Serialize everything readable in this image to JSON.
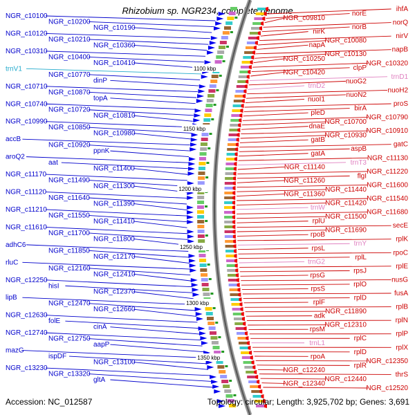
{
  "title": "Rhizobium sp. NGR234, complete genome",
  "footer": {
    "accession": "Accession: NC_012587",
    "summary": "Topology: circular; Length: 3,925,702 bp; Genes: 3,691"
  },
  "colors": {
    "left_label": "#0000cc",
    "right_label": "#cc0000",
    "trna_left": "#22aacc",
    "trna_right": "#e080c0",
    "forward_gene": "#0000ee",
    "reverse_gene": "#ee0000"
  },
  "scale_marks": [
    "1100 kbp",
    "1150 kbp",
    "1200 kbp",
    "1250 kbp",
    "1300 kbp",
    "1350 kbp"
  ],
  "left_labels": [
    {
      "text": "NGR_c10100",
      "type": "gene"
    },
    {
      "text": "NGR_c10200",
      "type": "gene"
    },
    {
      "text": "NGR_c10190",
      "type": "gene"
    },
    {
      "text": "NGR_c10120",
      "type": "gene"
    },
    {
      "text": "NGR_c10210",
      "type": "gene"
    },
    {
      "text": "NGR_c10360",
      "type": "gene"
    },
    {
      "text": "NGR_c10310",
      "type": "gene"
    },
    {
      "text": "NGR_c10400",
      "type": "gene"
    },
    {
      "text": "NGR_c10410",
      "type": "gene"
    },
    {
      "text": "trnV1",
      "type": "trna"
    },
    {
      "text": "NGR_c10770",
      "type": "gene"
    },
    {
      "text": "dinP",
      "type": "gene"
    },
    {
      "text": "NGR_c10710",
      "type": "gene"
    },
    {
      "text": "NGR_c10870",
      "type": "gene"
    },
    {
      "text": "topA",
      "type": "gene"
    },
    {
      "text": "NGR_c10740",
      "type": "gene"
    },
    {
      "text": "NGR_c10720",
      "type": "gene"
    },
    {
      "text": "NGR_c10810",
      "type": "gene"
    },
    {
      "text": "NGR_c10990",
      "type": "gene"
    },
    {
      "text": "NGR_c10850",
      "type": "gene"
    },
    {
      "text": "NGR_c10980",
      "type": "gene"
    },
    {
      "text": "accB",
      "type": "gene"
    },
    {
      "text": "NGR_c10920",
      "type": "gene"
    },
    {
      "text": "ppnK",
      "type": "gene"
    },
    {
      "text": "aroQ2",
      "type": "gene"
    },
    {
      "text": "aat",
      "type": "gene"
    },
    {
      "text": "NGR_c11400",
      "type": "gene"
    },
    {
      "text": "NGR_c11170",
      "type": "gene"
    },
    {
      "text": "NGR_c11490",
      "type": "gene"
    },
    {
      "text": "NGR_c11300",
      "type": "gene"
    },
    {
      "text": "NGR_c11120",
      "type": "gene"
    },
    {
      "text": "NGR_c11640",
      "type": "gene"
    },
    {
      "text": "NGR_c11390",
      "type": "gene"
    },
    {
      "text": "NGR_c11210",
      "type": "gene"
    },
    {
      "text": "NGR_c11550",
      "type": "gene"
    },
    {
      "text": "NGR_c11410",
      "type": "gene"
    },
    {
      "text": "NGR_c11610",
      "type": "gene"
    },
    {
      "text": "NGR_c11700",
      "type": "gene"
    },
    {
      "text": "NGR_c11800",
      "type": "gene"
    },
    {
      "text": "adhC6",
      "type": "gene"
    },
    {
      "text": "NGR_c11850",
      "type": "gene"
    },
    {
      "text": "NGR_c12170",
      "type": "gene"
    },
    {
      "text": "rluC",
      "type": "gene"
    },
    {
      "text": "NGR_c12160",
      "type": "gene"
    },
    {
      "text": "NGR_c12410",
      "type": "gene"
    },
    {
      "text": "NGR_c12250",
      "type": "gene"
    },
    {
      "text": "hisI",
      "type": "gene"
    },
    {
      "text": "NGR_c12370",
      "type": "gene"
    },
    {
      "text": "lipB",
      "type": "gene"
    },
    {
      "text": "NGR_c12470",
      "type": "gene"
    },
    {
      "text": "NGR_c12660",
      "type": "gene"
    },
    {
      "text": "NGR_c12630",
      "type": "gene"
    },
    {
      "text": "folE",
      "type": "gene"
    },
    {
      "text": "cinA",
      "type": "gene"
    },
    {
      "text": "NGR_c12740",
      "type": "gene"
    },
    {
      "text": "NGR_c12750",
      "type": "gene"
    },
    {
      "text": "aapP",
      "type": "gene"
    },
    {
      "text": "mazG",
      "type": "gene"
    },
    {
      "text": "ispDF",
      "type": "gene"
    },
    {
      "text": "NGR_c13100",
      "type": "gene"
    },
    {
      "text": "NGR_c13230",
      "type": "gene"
    },
    {
      "text": "NGR_c13320",
      "type": "gene"
    },
    {
      "text": "gltA",
      "type": "gene"
    }
  ],
  "right_labels": [
    {
      "text": "ihfA",
      "type": "gene"
    },
    {
      "text": "norE",
      "type": "gene"
    },
    {
      "text": "NGR_c09810",
      "type": "gene"
    },
    {
      "text": "norQ",
      "type": "gene"
    },
    {
      "text": "norB",
      "type": "gene"
    },
    {
      "text": "nirK",
      "type": "gene"
    },
    {
      "text": "nirV",
      "type": "gene"
    },
    {
      "text": "NGR_c10080",
      "type": "gene"
    },
    {
      "text": "napA",
      "type": "gene"
    },
    {
      "text": "napB",
      "type": "gene"
    },
    {
      "text": "NGR_c10130",
      "type": "gene"
    },
    {
      "text": "NGR_c10250",
      "type": "gene"
    },
    {
      "text": "NGR_c10320",
      "type": "gene"
    },
    {
      "text": "clpP",
      "type": "gene"
    },
    {
      "text": "NGR_c10420",
      "type": "gene"
    },
    {
      "text": "trnD1",
      "type": "trna"
    },
    {
      "text": "nuoG2",
      "type": "gene"
    },
    {
      "text": "trnD2",
      "type": "trna"
    },
    {
      "text": "nuoH2",
      "type": "gene"
    },
    {
      "text": "nuoN2",
      "type": "gene"
    },
    {
      "text": "nuoI1",
      "type": "gene"
    },
    {
      "text": "proS",
      "type": "gene"
    },
    {
      "text": "birA",
      "type": "gene"
    },
    {
      "text": "pleD",
      "type": "gene"
    },
    {
      "text": "NGR_c10790",
      "type": "gene"
    },
    {
      "text": "NGR_c10700",
      "type": "gene"
    },
    {
      "text": "dnaE",
      "type": "gene"
    },
    {
      "text": "NGR_c10910",
      "type": "gene"
    },
    {
      "text": "NGR_c10930",
      "type": "gene"
    },
    {
      "text": "gatB",
      "type": "gene"
    },
    {
      "text": "gatC",
      "type": "gene"
    },
    {
      "text": "aspB",
      "type": "gene"
    },
    {
      "text": "gatA",
      "type": "gene"
    },
    {
      "text": "NGR_c11130",
      "type": "gene"
    },
    {
      "text": "trnT3",
      "type": "trna"
    },
    {
      "text": "NGR_c11140",
      "type": "gene"
    },
    {
      "text": "NGR_c11220",
      "type": "gene"
    },
    {
      "text": "flgI",
      "type": "gene"
    },
    {
      "text": "NGR_c11260",
      "type": "gene"
    },
    {
      "text": "NGR_c11600",
      "type": "gene"
    },
    {
      "text": "NGR_c11440",
      "type": "gene"
    },
    {
      "text": "NGR_c11360",
      "type": "gene"
    },
    {
      "text": "NGR_c11540",
      "type": "gene"
    },
    {
      "text": "NGR_c11420",
      "type": "gene"
    },
    {
      "text": "trnW",
      "type": "trna"
    },
    {
      "text": "NGR_c11680",
      "type": "gene"
    },
    {
      "text": "NGR_c11500",
      "type": "gene"
    },
    {
      "text": "rplU",
      "type": "gene"
    },
    {
      "text": "secE",
      "type": "gene"
    },
    {
      "text": "NGR_c11690",
      "type": "gene"
    },
    {
      "text": "rpoB",
      "type": "gene"
    },
    {
      "text": "rplK",
      "type": "gene"
    },
    {
      "text": "trnY",
      "type": "trna"
    },
    {
      "text": "rpsL",
      "type": "gene"
    },
    {
      "text": "rpoC",
      "type": "gene"
    },
    {
      "text": "rplL",
      "type": "gene"
    },
    {
      "text": "trnG2",
      "type": "trna"
    },
    {
      "text": "rplE",
      "type": "gene"
    },
    {
      "text": "rpsJ",
      "type": "gene"
    },
    {
      "text": "rpsG",
      "type": "gene"
    },
    {
      "text": "nusG",
      "type": "gene"
    },
    {
      "text": "rplO",
      "type": "gene"
    },
    {
      "text": "rpsS",
      "type": "gene"
    },
    {
      "text": "fusA",
      "type": "gene"
    },
    {
      "text": "rplD",
      "type": "gene"
    },
    {
      "text": "rplF",
      "type": "gene"
    },
    {
      "text": "rplB",
      "type": "gene"
    },
    {
      "text": "NGR_c11890",
      "type": "gene"
    },
    {
      "text": "adk",
      "type": "gene"
    },
    {
      "text": "rplN",
      "type": "gene"
    },
    {
      "text": "NGR_c12310",
      "type": "gene"
    },
    {
      "text": "rpsM",
      "type": "gene"
    },
    {
      "text": "rplP",
      "type": "gene"
    },
    {
      "text": "rplC",
      "type": "gene"
    },
    {
      "text": "trnL1",
      "type": "trna"
    },
    {
      "text": "rplX",
      "type": "gene"
    },
    {
      "text": "rplD",
      "type": "gene"
    },
    {
      "text": "rpoA",
      "type": "gene"
    },
    {
      "text": "NGR_c12350",
      "type": "gene"
    },
    {
      "text": "rplR",
      "type": "gene"
    },
    {
      "text": "NGR_c12240",
      "type": "gene"
    },
    {
      "text": "thrS",
      "type": "gene"
    },
    {
      "text": "NGR_c12440",
      "type": "gene"
    },
    {
      "text": "NGR_c12340",
      "type": "gene"
    },
    {
      "text": "NGR_c12520",
      "type": "gene"
    }
  ]
}
